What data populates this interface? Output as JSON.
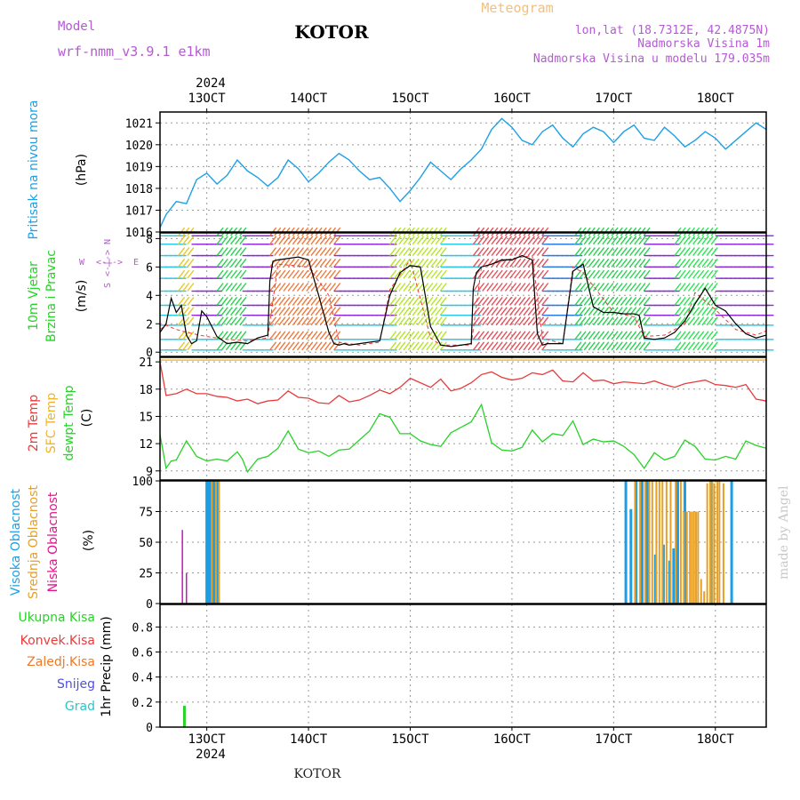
{
  "header": {
    "model_label": "Model",
    "model_name": "wrf-nmm_v3.9.1  e1km",
    "location": "KOTOR",
    "meteogram": "Meteogram",
    "lonlat": "lon,lat (18.7312E, 42.4875N)",
    "elevation": "Nadmorska Visina 1m",
    "model_elevation": "Nadmorska Visina u modelu 179.035m",
    "year": "2024",
    "footer_location": "KOTOR",
    "credit": "made by Angel"
  },
  "time_axis": {
    "ticks": [
      "13OCT",
      "14OCT",
      "15OCT",
      "16OCT",
      "17OCT",
      "18OCT"
    ],
    "day_range": [
      12.54,
      18.5
    ]
  },
  "colors": {
    "pressure": "#1ea0e6",
    "wind_speed": "#000000",
    "t2m": "#e63c3c",
    "sfc": "#f0b428",
    "dewpt": "#28d228",
    "cloud_high": "#1e9ee0",
    "cloud_mid": "#e6a028",
    "cloud_low": "#c814c8",
    "precip_total": "#2ad22a",
    "precip_conv": "#e63c3c",
    "precip_frz": "#f07828",
    "snow": "#5050e0",
    "graupel": "#28c8c8"
  },
  "panels": {
    "pressure": {
      "label_a": "Pritisak na nivou mora",
      "unit": "(hPa)"
    },
    "wind": {
      "label_a": "10m Vjetar",
      "label_b": "Brzina i Pravac",
      "unit": "(m/s)",
      "dir_n": "N",
      "dir_e": "E",
      "dir_w": "W",
      "dir_s": "S",
      "compass": "<-|->"
    },
    "temp": {
      "label_a": "2m Temp",
      "label_b": "SFC Temp",
      "label_c": "dewpt Temp",
      "unit": "(C)"
    },
    "cloud": {
      "label_a": "Visoka Oblacnost",
      "label_b": "Srednja Oblacnost",
      "label_c": "Niska Oblacnost",
      "unit": "(%)"
    },
    "precip": {
      "label_total": "Ukupna Kisa",
      "label_conv": "Konvek.Kisa",
      "label_frz": "Zaledj.Kisa",
      "label_snow": "Snijeg",
      "label_grad": "Grad",
      "unit": "1hr Precip (mm)"
    }
  },
  "chart_data": [
    {
      "type": "line",
      "panel": "pressure",
      "ylabel": "Pritisak na nivou mora (hPa)",
      "ylim": [
        1016,
        1021.5
      ],
      "yticks": [
        "1016",
        "1017",
        "1018",
        "1019",
        "1020",
        "1021"
      ],
      "series": [
        {
          "name": "Pritisak na nivou mora",
          "x": [
            12.54,
            12.6,
            12.7,
            12.8,
            12.9,
            13.0,
            13.1,
            13.2,
            13.3,
            13.4,
            13.5,
            13.6,
            13.7,
            13.8,
            13.9,
            14.0,
            14.1,
            14.2,
            14.3,
            14.4,
            14.5,
            14.6,
            14.7,
            14.8,
            14.9,
            15.0,
            15.1,
            15.2,
            15.3,
            15.4,
            15.5,
            15.6,
            15.7,
            15.8,
            15.9,
            16.0,
            16.1,
            16.2,
            16.3,
            16.4,
            16.5,
            16.6,
            16.7,
            16.8,
            16.9,
            17.0,
            17.1,
            17.2,
            17.3,
            17.4,
            17.5,
            17.6,
            17.7,
            17.8,
            17.9,
            18.0,
            18.1,
            18.2,
            18.3,
            18.4,
            18.5
          ],
          "y": [
            1016.2,
            1016.8,
            1017.4,
            1017.3,
            1018.4,
            1018.7,
            1018.2,
            1018.6,
            1019.3,
            1018.8,
            1018.5,
            1018.1,
            1018.5,
            1019.3,
            1018.9,
            1018.3,
            1018.7,
            1019.2,
            1019.6,
            1019.3,
            1018.8,
            1018.4,
            1018.5,
            1018.0,
            1017.4,
            1017.9,
            1018.5,
            1019.2,
            1018.8,
            1018.4,
            1018.9,
            1019.3,
            1019.8,
            1020.7,
            1021.2,
            1020.8,
            1020.2,
            1020.0,
            1020.6,
            1020.9,
            1020.3,
            1019.9,
            1020.5,
            1020.8,
            1020.6,
            1020.1,
            1020.6,
            1020.9,
            1020.3,
            1020.2,
            1020.8,
            1020.4,
            1019.9,
            1020.2,
            1020.6,
            1020.3,
            1019.8,
            1020.2,
            1020.6,
            1021.0,
            1020.7
          ]
        }
      ]
    },
    {
      "type": "line",
      "panel": "wind",
      "ylabel": "10m Vjetar Brzina i Pravac (m/s)",
      "ylim": [
        -0.3,
        8.4
      ],
      "yticks": [
        "0",
        "2",
        "4",
        "6",
        "8"
      ],
      "series": [
        {
          "name": "10m Vjetar",
          "x": [
            12.54,
            12.6,
            12.65,
            12.7,
            12.75,
            12.8,
            12.85,
            12.9,
            12.95,
            13.0,
            13.1,
            13.2,
            13.3,
            13.4,
            13.5,
            13.6,
            13.62,
            13.65,
            13.7,
            13.8,
            13.9,
            14.0,
            14.1,
            14.2,
            14.25,
            14.3,
            14.35,
            14.4,
            14.5,
            14.6,
            14.7,
            14.8,
            14.9,
            15.0,
            15.1,
            15.2,
            15.3,
            15.4,
            15.5,
            15.6,
            15.62,
            15.65,
            15.7,
            15.8,
            15.9,
            16.0,
            16.1,
            16.2,
            16.25,
            16.3,
            16.35,
            16.4,
            16.5,
            16.6,
            16.7,
            16.8,
            16.9,
            17.0,
            17.1,
            17.2,
            17.25,
            17.3,
            17.4,
            17.5,
            17.6,
            17.7,
            17.8,
            17.9,
            18.0,
            18.1,
            18.2,
            18.3,
            18.4,
            18.5
          ],
          "y": [
            1.4,
            2.0,
            3.8,
            2.8,
            3.3,
            1.2,
            0.6,
            0.8,
            2.9,
            2.5,
            1.1,
            0.6,
            0.7,
            0.6,
            1.0,
            1.2,
            5.0,
            6.4,
            6.5,
            6.6,
            6.7,
            6.5,
            4.0,
            1.4,
            0.6,
            0.5,
            0.6,
            0.5,
            0.6,
            0.7,
            0.8,
            4.0,
            5.6,
            6.1,
            6.0,
            1.8,
            0.5,
            0.4,
            0.5,
            0.6,
            4.5,
            5.6,
            6.0,
            6.2,
            6.5,
            6.5,
            6.8,
            6.5,
            1.3,
            0.5,
            0.6,
            0.6,
            0.6,
            5.7,
            6.2,
            3.2,
            2.8,
            2.8,
            2.7,
            2.7,
            2.6,
            1.0,
            0.9,
            1.0,
            1.4,
            2.2,
            3.4,
            4.5,
            3.3,
            2.9,
            2.0,
            1.3,
            1.0,
            1.2
          ]
        }
      ]
    },
    {
      "type": "line",
      "panel": "temperature",
      "ylabel": "(C)",
      "ylim": [
        8,
        21.5
      ],
      "yticks": [
        "9",
        "12",
        "15",
        "18",
        "21"
      ],
      "series": [
        {
          "name": "2m Temp",
          "x": [
            12.54,
            12.6,
            12.7,
            12.8,
            12.9,
            13.0,
            13.1,
            13.2,
            13.3,
            13.4,
            13.5,
            13.6,
            13.7,
            13.8,
            13.9,
            14.0,
            14.1,
            14.2,
            14.3,
            14.4,
            14.5,
            14.6,
            14.7,
            14.8,
            14.9,
            15.0,
            15.1,
            15.2,
            15.3,
            15.4,
            15.5,
            15.6,
            15.7,
            15.8,
            15.9,
            16.0,
            16.1,
            16.2,
            16.3,
            16.4,
            16.5,
            16.6,
            16.7,
            16.8,
            16.9,
            17.0,
            17.1,
            17.2,
            17.3,
            17.4,
            17.5,
            17.6,
            17.7,
            17.8,
            17.9,
            18.0,
            18.1,
            18.2,
            18.3,
            18.4,
            18.5
          ],
          "y": [
            21.0,
            17.3,
            17.5,
            18.0,
            17.5,
            17.5,
            17.2,
            17.1,
            16.7,
            16.9,
            16.4,
            16.7,
            16.8,
            17.8,
            17.1,
            17.0,
            16.5,
            16.4,
            17.3,
            16.6,
            16.8,
            17.3,
            17.9,
            17.5,
            18.2,
            19.2,
            18.7,
            18.2,
            19.1,
            17.8,
            18.1,
            18.7,
            19.6,
            19.9,
            19.3,
            19.0,
            19.2,
            19.8,
            19.6,
            20.1,
            18.9,
            18.8,
            19.8,
            18.9,
            19.0,
            18.6,
            18.8,
            18.7,
            18.6,
            18.9,
            18.5,
            18.2,
            18.6,
            18.8,
            19.0,
            18.5,
            18.4,
            18.2,
            18.5,
            16.9,
            16.7
          ]
        },
        {
          "name": "SFC Temp",
          "x": [
            12.54,
            18.5
          ],
          "y": [
            21.2,
            21.2
          ]
        },
        {
          "name": "dewpt Temp",
          "x": [
            12.54,
            12.6,
            12.65,
            12.7,
            12.8,
            12.9,
            13.0,
            13.1,
            13.2,
            13.3,
            13.35,
            13.4,
            13.5,
            13.6,
            13.7,
            13.8,
            13.9,
            14.0,
            14.1,
            14.2,
            14.3,
            14.4,
            14.5,
            14.6,
            14.7,
            14.8,
            14.9,
            15.0,
            15.1,
            15.2,
            15.3,
            15.4,
            15.5,
            15.6,
            15.7,
            15.8,
            15.9,
            16.0,
            16.1,
            16.2,
            16.3,
            16.4,
            16.5,
            16.6,
            16.7,
            16.8,
            16.9,
            17.0,
            17.1,
            17.2,
            17.3,
            17.4,
            17.5,
            17.6,
            17.7,
            17.8,
            17.9,
            18.0,
            18.1,
            18.2,
            18.3,
            18.4,
            18.5
          ],
          "y": [
            13.0,
            9.3,
            10.1,
            10.2,
            12.3,
            10.6,
            10.1,
            10.3,
            10.1,
            11.1,
            10.3,
            8.9,
            10.3,
            10.6,
            11.5,
            13.4,
            11.4,
            11.0,
            11.2,
            10.6,
            11.3,
            11.4,
            12.4,
            13.4,
            15.3,
            14.9,
            13.1,
            13.1,
            12.3,
            11.9,
            11.7,
            13.2,
            13.8,
            14.4,
            16.3,
            12.1,
            11.3,
            11.2,
            11.6,
            13.5,
            12.2,
            13.1,
            12.9,
            14.5,
            11.9,
            12.5,
            12.2,
            12.3,
            11.7,
            10.8,
            9.3,
            11.0,
            10.2,
            10.6,
            12.4,
            11.7,
            10.3,
            10.2,
            10.6,
            10.3,
            12.3,
            11.8,
            11.5
          ]
        }
      ]
    },
    {
      "type": "bar",
      "panel": "cloud",
      "ylabel": "(%)",
      "ylim": [
        0,
        100
      ],
      "yticks": [
        "0",
        "25",
        "50",
        "75",
        "100"
      ],
      "series": [
        {
          "name": "Visoka Oblacnost",
          "x": [
            13.0,
            13.02,
            13.04,
            13.06,
            13.08,
            13.1,
            17.12,
            17.17,
            17.22,
            17.28,
            17.33,
            17.41,
            17.49,
            17.55,
            17.59,
            17.63,
            17.7,
            17.96,
            18.16
          ],
          "y": [
            100,
            100,
            100,
            100,
            100,
            100,
            100,
            77,
            100,
            100,
            100,
            40,
            48,
            35,
            45,
            100,
            100,
            100,
            100
          ]
        },
        {
          "name": "Srednja Oblacnost",
          "x": [
            13.05,
            13.09,
            13.12,
            17.21,
            17.26,
            17.31,
            17.35,
            17.38,
            17.42,
            17.45,
            17.48,
            17.52,
            17.56,
            17.61,
            17.66,
            17.69,
            17.72,
            17.75,
            17.77,
            17.79,
            17.81,
            17.83,
            17.86,
            17.89,
            17.92,
            17.95,
            17.97,
            17.99,
            18.02,
            18.04,
            18.08
          ],
          "y": [
            100,
            100,
            100,
            100,
            100,
            100,
            100,
            100,
            100,
            100,
            100,
            100,
            100,
            100,
            100,
            75,
            75,
            75,
            75,
            75,
            75,
            75,
            20,
            10,
            98,
            100,
            100,
            98,
            100,
            100,
            98
          ]
        },
        {
          "name": "Niska Oblacnost",
          "x": [
            12.76,
            12.8,
            13.0
          ],
          "y": [
            60,
            25,
            0
          ]
        }
      ]
    },
    {
      "type": "bar",
      "panel": "precipitation",
      "ylabel": "1hr Precip (mm)",
      "ylim": [
        0,
        0.98
      ],
      "yticks": [
        "0",
        "0.2",
        "0.4",
        "0.6",
        "0.8"
      ],
      "series": [
        {
          "name": "Ukupna Kisa",
          "x": [
            12.78
          ],
          "y": [
            0.17
          ]
        }
      ]
    }
  ]
}
